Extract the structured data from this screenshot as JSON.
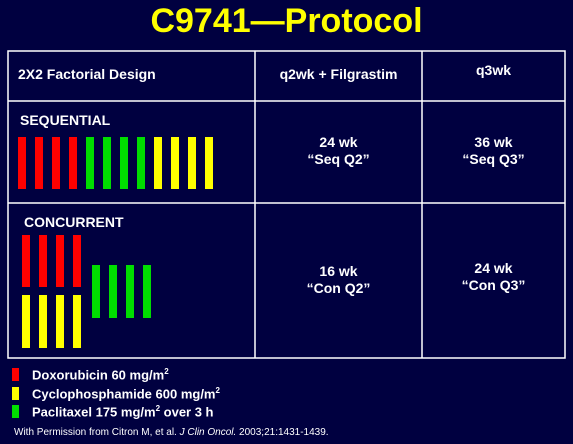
{
  "title": "C9741—Protocol",
  "table": {
    "header": [
      "2X2 Factorial Design",
      "q2wk + Filgrastim",
      "q3wk"
    ],
    "rows": [
      {
        "label": "SEQUENTIAL",
        "cells": [
          {
            "duration": "24 wk",
            "name": "“Seq Q2”"
          },
          {
            "duration": "36 wk",
            "name": "“Seq Q3”"
          }
        ]
      },
      {
        "label": "CONCURRENT",
        "cells": [
          {
            "duration": "16 wk",
            "name": "“Con Q2”"
          },
          {
            "duration": "24 wk",
            "name": "“Con Q3”"
          }
        ]
      }
    ]
  },
  "legend": [
    {
      "text": "Doxorubicin 60 mg/m",
      "sup": "2"
    },
    {
      "text": "Cyclophosphamide 600 mg/m",
      "sup": "2"
    },
    {
      "text": "Paclitaxel 175 mg/m",
      "sup": "2",
      "rest": " over 3 h"
    }
  ],
  "citation": {
    "prefix": "With Permission from Citron M, et al. ",
    "journal": "J Clin Oncol.",
    "suffix": " 2003;21:1431-1439."
  }
}
